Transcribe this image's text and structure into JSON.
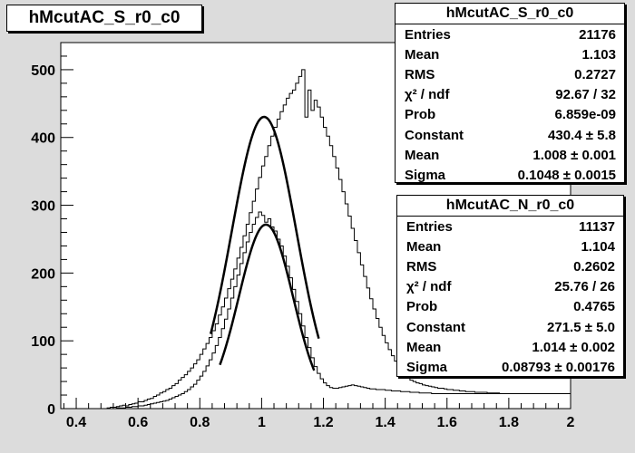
{
  "title": "hMcutAC_S_r0_c0",
  "stat_boxes": [
    {
      "title": "hMcutAC_S_r0_c0",
      "rows": [
        {
          "label": "Entries",
          "value": "21176"
        },
        {
          "label": "Mean",
          "value": "1.103"
        },
        {
          "label": "RMS",
          "value": "0.2727"
        },
        {
          "label": "χ² / ndf",
          "value": "92.67 / 32"
        },
        {
          "label": "Prob",
          "value": "6.859e-09"
        },
        {
          "label": "Constant",
          "value": "430.4 ± 5.8"
        },
        {
          "label": "Mean",
          "value": "1.008 ± 0.001"
        },
        {
          "label": "Sigma",
          "value": "0.1048 ± 0.0015"
        }
      ]
    },
    {
      "title": "hMcutAC_N_r0_c0",
      "rows": [
        {
          "label": "Entries",
          "value": "11137"
        },
        {
          "label": "Mean",
          "value": "1.104"
        },
        {
          "label": "RMS",
          "value": "0.2602"
        },
        {
          "label": "χ² / ndf",
          "value": "25.76 / 26"
        },
        {
          "label": "Prob",
          "value": "0.4765"
        },
        {
          "label": "Constant",
          "value": "271.5 ± 5.0"
        },
        {
          "label": "Mean",
          "value": "1.014 ± 0.002"
        },
        {
          "label": "Sigma",
          "value": "0.08793 ± 0.00176"
        }
      ]
    }
  ],
  "chart_data": {
    "type": "histogram",
    "xlim": [
      0.35,
      2.0
    ],
    "ylim": [
      0,
      540
    ],
    "x_ticks": [
      "0.4",
      "0.6",
      "0.8",
      "1",
      "1.2",
      "1.4",
      "1.6",
      "1.8",
      "2"
    ],
    "y_ticks": [
      "0",
      "100",
      "200",
      "300",
      "400",
      "500"
    ],
    "grid": false,
    "colors": {
      "histogram": "#000000",
      "fit": "#000000",
      "frame_fill": "#ffffff",
      "canvas": "#dcdcdc"
    },
    "histograms": [
      {
        "name": "hMcutAC_S_r0_c0",
        "bin_width": 0.01,
        "x_start": 0.5,
        "values": [
          1,
          2,
          2,
          3,
          4,
          5,
          4,
          6,
          7,
          8,
          10,
          10,
          12,
          14,
          15,
          18,
          20,
          23,
          25,
          28,
          30,
          34,
          37,
          42,
          46,
          50,
          55,
          60,
          66,
          72,
          80,
          88,
          96,
          105,
          115,
          125,
          138,
          150,
          163,
          177,
          191,
          206,
          222,
          238,
          255,
          272,
          289,
          306,
          324,
          341,
          358,
          372,
          388,
          402,
          415,
          427,
          438,
          448,
          458,
          465,
          470,
          480,
          490,
          500,
          430,
          470,
          440,
          455,
          445,
          430,
          415,
          402,
          388,
          372,
          355,
          338,
          320,
          302,
          284,
          266,
          248,
          230,
          212,
          195,
          178,
          162,
          147,
          133,
          120,
          108,
          97,
          87,
          78,
          70,
          62,
          56,
          50,
          46,
          42,
          40,
          38,
          37,
          35,
          34,
          33,
          32,
          31,
          30,
          30,
          29,
          28,
          28,
          27,
          27,
          26,
          26,
          25,
          25,
          25,
          24,
          24,
          24,
          24,
          23,
          23,
          23,
          23,
          22,
          22,
          22,
          22,
          22,
          22,
          22,
          22,
          22,
          22,
          22,
          22,
          22,
          22,
          22,
          22,
          22,
          22,
          22,
          22,
          22
        ]
      },
      {
        "name": "hMcutAC_N_r0_c0",
        "bin_width": 0.01,
        "x_start": 0.5,
        "values": [
          0,
          0,
          0,
          1,
          1,
          1,
          2,
          2,
          3,
          3,
          4,
          4,
          5,
          6,
          7,
          8,
          9,
          10,
          11,
          12,
          14,
          16,
          18,
          20,
          22,
          25,
          28,
          32,
          36,
          42,
          48,
          55,
          63,
          72,
          82,
          93,
          105,
          118,
          132,
          147,
          163,
          180,
          197,
          214,
          230,
          246,
          260,
          272,
          282,
          290,
          285,
          275,
          280,
          268,
          262,
          250,
          240,
          225,
          210,
          193,
          176,
          158,
          140,
          122,
          105,
          90,
          75,
          62,
          52,
          44,
          38,
          34,
          31,
          30,
          30,
          31,
          32,
          33,
          34,
          35,
          34,
          33,
          32,
          31,
          30,
          29,
          29,
          28,
          28,
          28,
          27,
          27,
          26,
          26,
          26,
          25,
          25,
          25,
          24,
          24,
          24,
          23,
          23,
          23,
          23,
          22,
          22,
          22,
          22,
          22,
          22,
          22,
          22,
          22,
          22,
          22,
          22,
          22,
          22,
          22,
          22,
          22,
          22,
          22,
          22,
          22,
          22,
          22,
          22,
          22,
          22,
          22,
          22,
          22,
          22,
          22,
          22,
          22,
          22,
          22,
          22,
          22,
          22,
          22,
          22,
          22,
          22,
          22,
          22,
          22
        ]
      }
    ],
    "fits": [
      {
        "name": "hMcutAC_S_r0_c0 gaus fit",
        "constant": 430.4,
        "mean": 1.008,
        "sigma": 0.1048,
        "range": [
          0.835,
          1.185
        ]
      },
      {
        "name": "hMcutAC_N_r0_c0 gaus fit",
        "constant": 271.5,
        "mean": 1.014,
        "sigma": 0.08793,
        "range": [
          0.865,
          1.17
        ]
      }
    ]
  }
}
